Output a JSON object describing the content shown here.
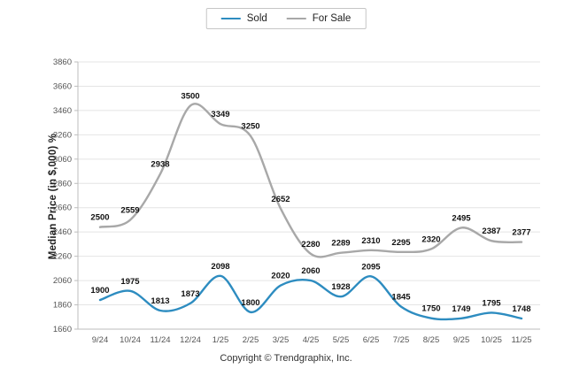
{
  "legend": {
    "items": [
      {
        "label": "Sold",
        "color": "#2d8cc0"
      },
      {
        "label": "For Sale",
        "color": "#a8a8a8"
      }
    ]
  },
  "ylabel": "Median Price (in $,000) %",
  "footer": {
    "copyright": "Copyright © Trendgraphix, Inc."
  },
  "chart_data": {
    "type": "line",
    "title": "",
    "xlabel": "",
    "ylabel": "Median Price (in $,000) %",
    "categories": [
      "9/24",
      "10/24",
      "11/24",
      "12/24",
      "1/25",
      "2/25",
      "3/25",
      "4/25",
      "5/25",
      "6/25",
      "7/25",
      "8/25",
      "9/25",
      "10/25",
      "11/25"
    ],
    "series": [
      {
        "name": "Sold",
        "color": "#2d8cc0",
        "values": [
          1900,
          1975,
          1813,
          1873,
          2098,
          1800,
          2020,
          2060,
          1928,
          2095,
          1845,
          1750,
          1749,
          1795,
          1748
        ]
      },
      {
        "name": "For Sale",
        "color": "#a8a8a8",
        "values": [
          2500,
          2559,
          2938,
          3500,
          3349,
          3250,
          2652,
          2280,
          2289,
          2310,
          2295,
          2320,
          2495,
          2387,
          2377
        ]
      }
    ],
    "ylim": [
      1660,
      3860
    ],
    "ytick_step": 200,
    "grid": true,
    "legend_position": "top",
    "data_labels": true
  }
}
